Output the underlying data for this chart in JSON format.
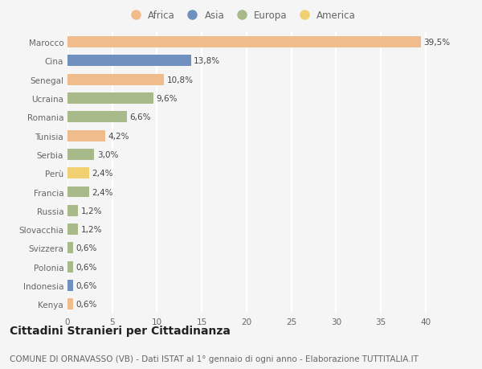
{
  "countries": [
    "Marocco",
    "Cina",
    "Senegal",
    "Ucraina",
    "Romania",
    "Tunisia",
    "Serbia",
    "Perù",
    "Francia",
    "Russia",
    "Slovacchia",
    "Svizzera",
    "Polonia",
    "Indonesia",
    "Kenya"
  ],
  "values": [
    39.5,
    13.8,
    10.8,
    9.6,
    6.6,
    4.2,
    3.0,
    2.4,
    2.4,
    1.2,
    1.2,
    0.6,
    0.6,
    0.6,
    0.6
  ],
  "labels": [
    "39,5%",
    "13,8%",
    "10,8%",
    "9,6%",
    "6,6%",
    "4,2%",
    "3,0%",
    "2,4%",
    "2,4%",
    "1,2%",
    "1,2%",
    "0,6%",
    "0,6%",
    "0,6%",
    "0,6%"
  ],
  "categories": [
    "Africa",
    "Asia",
    "Africa",
    "Europa",
    "Europa",
    "Africa",
    "Europa",
    "America",
    "Europa",
    "Europa",
    "Europa",
    "Europa",
    "Europa",
    "Asia",
    "Africa"
  ],
  "colors": {
    "Africa": "#F0BC8C",
    "Asia": "#7090C0",
    "Europa": "#A8BA8A",
    "America": "#F0D070"
  },
  "xlim": [
    0,
    42
  ],
  "xticks": [
    0,
    5,
    10,
    15,
    20,
    25,
    30,
    35,
    40
  ],
  "title": "Cittadini Stranieri per Cittadinanza",
  "subtitle": "COMUNE DI ORNAVASSO (VB) - Dati ISTAT al 1° gennaio di ogni anno - Elaborazione TUTTITALIA.IT",
  "bg_color": "#f5f5f5",
  "grid_color": "#ffffff",
  "title_fontsize": 10,
  "subtitle_fontsize": 7.5,
  "label_fontsize": 7.5,
  "tick_fontsize": 7.5,
  "legend_fontsize": 8.5
}
